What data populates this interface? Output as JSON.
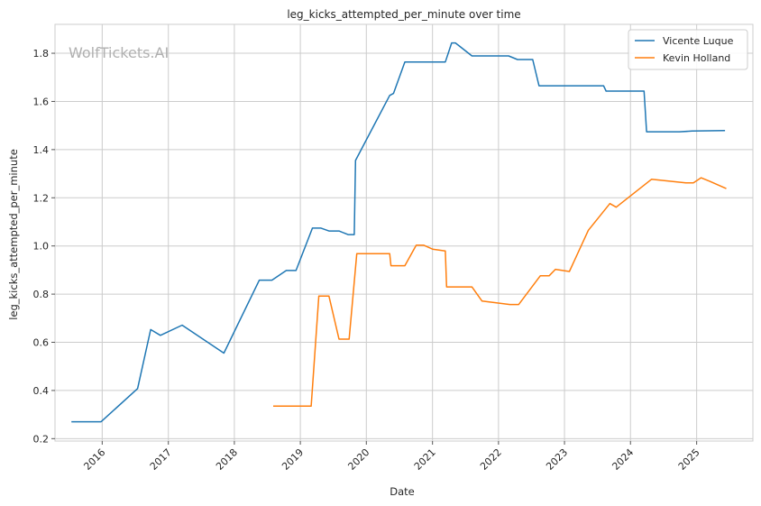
{
  "watermark": "WolfTickets.AI",
  "chart_data": {
    "type": "line",
    "title": "leg_kicks_attempted_per_minute over time",
    "xlabel": "Date",
    "ylabel": "leg_kicks_attempted_per_minute",
    "x_ticks": [
      "2016",
      "2017",
      "2018",
      "2019",
      "2020",
      "2021",
      "2022",
      "2023",
      "2024",
      "2025"
    ],
    "y_ticks": [
      "0.2",
      "0.4",
      "0.6",
      "0.8",
      "1.0",
      "1.2",
      "1.4",
      "1.6",
      "1.8"
    ],
    "ylim": [
      0.19,
      1.92
    ],
    "xlim": [
      "2015-04-15",
      "2025-11-08"
    ],
    "grid": true,
    "legend_position": "top-right",
    "series": [
      {
        "name": "Vicente Luque",
        "color": "#1f77b4",
        "points": [
          [
            "2015-07-15",
            0.27
          ],
          [
            "2015-12-26",
            0.27
          ],
          [
            "2016-07-15",
            0.408
          ],
          [
            "2016-09-25",
            0.653
          ],
          [
            "2016-11-18",
            0.629
          ],
          [
            "2017-03-18",
            0.671
          ],
          [
            "2017-11-04",
            0.555
          ],
          [
            "2018-05-19",
            0.858
          ],
          [
            "2018-07-28",
            0.858
          ],
          [
            "2018-10-15",
            0.898
          ],
          [
            "2018-12-08",
            0.898
          ],
          [
            "2019-03-09",
            1.074
          ],
          [
            "2019-04-25",
            1.074
          ],
          [
            "2019-06-08",
            1.062
          ],
          [
            "2019-08-03",
            1.062
          ],
          [
            "2019-09-22",
            1.047
          ],
          [
            "2019-10-26",
            1.047
          ],
          [
            "2019-11-02",
            1.355
          ],
          [
            "2020-05-09",
            1.625
          ],
          [
            "2020-05-30",
            1.633
          ],
          [
            "2020-08-01",
            1.764
          ],
          [
            "2020-10-31",
            1.764
          ],
          [
            "2021-03-13",
            1.764
          ],
          [
            "2021-04-17",
            1.843
          ],
          [
            "2021-05-08",
            1.843
          ],
          [
            "2021-08-07",
            1.789
          ],
          [
            "2022-02-26",
            1.789
          ],
          [
            "2022-04-16",
            1.774
          ],
          [
            "2022-07-09",
            1.774
          ],
          [
            "2022-08-13",
            1.665
          ],
          [
            "2023-08-05",
            1.665
          ],
          [
            "2023-08-19",
            1.643
          ],
          [
            "2024-03-16",
            1.643
          ],
          [
            "2024-03-30",
            1.474
          ],
          [
            "2024-09-28",
            1.474
          ],
          [
            "2024-12-07",
            1.477
          ],
          [
            "2025-06-07",
            1.479
          ]
        ]
      },
      {
        "name": "Kevin Holland",
        "color": "#ff7f0e",
        "points": [
          [
            "2018-08-04",
            0.335
          ],
          [
            "2019-03-02",
            0.335
          ],
          [
            "2019-04-13",
            0.792
          ],
          [
            "2019-06-08",
            0.792
          ],
          [
            "2019-08-03",
            0.613
          ],
          [
            "2019-09-28",
            0.613
          ],
          [
            "2019-11-09",
            0.968
          ],
          [
            "2020-05-09",
            0.968
          ],
          [
            "2020-05-16",
            0.918
          ],
          [
            "2020-08-01",
            0.918
          ],
          [
            "2020-10-03",
            1.003
          ],
          [
            "2020-11-14",
            1.003
          ],
          [
            "2021-01-01",
            0.987
          ],
          [
            "2021-03-13",
            0.979
          ],
          [
            "2021-03-20",
            0.83
          ],
          [
            "2021-08-07",
            0.83
          ],
          [
            "2021-10-02",
            0.771
          ],
          [
            "2022-03-05",
            0.757
          ],
          [
            "2022-04-23",
            0.757
          ],
          [
            "2022-08-20",
            0.876
          ],
          [
            "2022-10-08",
            0.876
          ],
          [
            "2022-11-12",
            0.903
          ],
          [
            "2023-01-28",
            0.894
          ],
          [
            "2023-05-13",
            1.065
          ],
          [
            "2023-09-09",
            1.176
          ],
          [
            "2023-10-14",
            1.161
          ],
          [
            "2024-04-27",
            1.277
          ],
          [
            "2024-11-02",
            1.262
          ],
          [
            "2024-12-14",
            1.262
          ],
          [
            "2025-01-25",
            1.283
          ],
          [
            "2025-03-15",
            1.268
          ],
          [
            "2025-06-14",
            1.238
          ]
        ]
      }
    ]
  }
}
